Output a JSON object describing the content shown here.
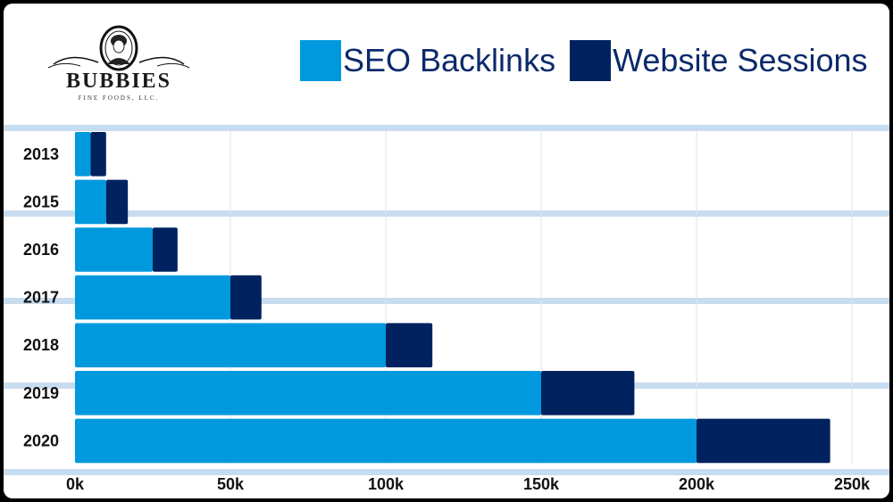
{
  "logo": {
    "brand": "BUBBIES",
    "sub": "FINE FOODS, LLC."
  },
  "legend": [
    {
      "label": "SEO Backlinks",
      "color": "#0099dd"
    },
    {
      "label": "Website Sessions",
      "color": "#002360"
    }
  ],
  "chart_data": {
    "type": "bar",
    "orientation": "horizontal",
    "stacked": true,
    "categories": [
      "2013",
      "2015",
      "2016",
      "2017",
      "2018",
      "2019",
      "2020"
    ],
    "series": [
      {
        "name": "SEO Backlinks",
        "color": "#0099dd",
        "values": [
          5000,
          10000,
          25000,
          50000,
          100000,
          150000,
          200000
        ]
      },
      {
        "name": "Website Sessions",
        "color": "#002360",
        "values": [
          5000,
          7000,
          8000,
          10000,
          15000,
          30000,
          43000
        ]
      }
    ],
    "xticks": [
      "0k",
      "50k",
      "100k",
      "150k",
      "200k",
      "250k"
    ],
    "xlim": [
      0,
      250000
    ],
    "grid": true,
    "legend_position": "top-right"
  }
}
